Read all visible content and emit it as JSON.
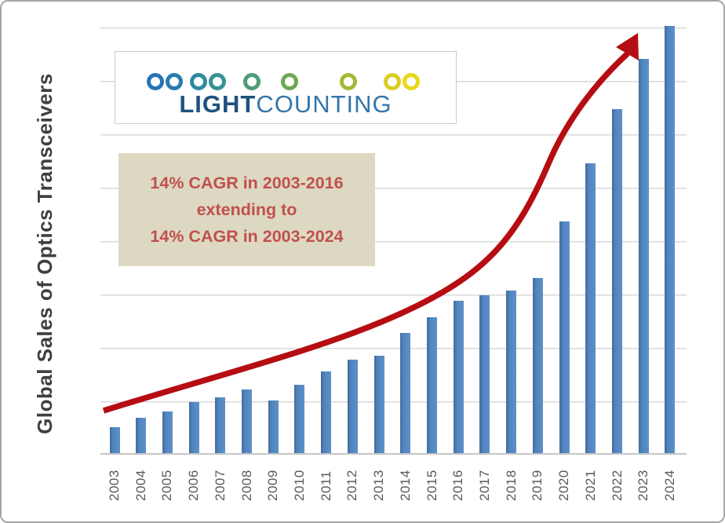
{
  "chart_data": {
    "type": "bar",
    "title": "",
    "ylabel": "Global Sales of Optics Transceivers",
    "xlabel": "",
    "categories": [
      "2003",
      "2004",
      "2005",
      "2006",
      "2007",
      "2008",
      "2009",
      "2010",
      "2011",
      "2012",
      "2013",
      "2014",
      "2015",
      "2016",
      "2017",
      "2018",
      "2019",
      "2020",
      "2021",
      "2022",
      "2023",
      "2024"
    ],
    "values": [
      0.49,
      0.66,
      0.78,
      0.95,
      1.04,
      1.19,
      0.98,
      1.28,
      1.53,
      1.75,
      1.82,
      2.25,
      2.54,
      2.85,
      2.95,
      3.05,
      3.28,
      4.34,
      5.43,
      6.44,
      7.38,
      8.0
    ],
    "value_units": "relative units (no numeric y-axis labels shown; 1 unit = one gridline interval)",
    "ylim": [
      0,
      8
    ],
    "gridlines": true,
    "legend": "none",
    "bar_color": "#4f84bf",
    "trend_arrow": {
      "description": "exponential growth arrow from 2003 baseline to above 2023 bar",
      "color": "#b50d12"
    }
  },
  "annotation": {
    "lines": [
      "14% CAGR in 2003-2016",
      "extending to",
      "14% CAGR in 2003-2024"
    ],
    "bg_color": "#ddd8c2",
    "text_color": "#c0504d"
  },
  "logo": {
    "brand_part1": "LIGHT",
    "brand_part2": "COUNTING",
    "part1_color": "#1f5182",
    "part2_color": "#3476ac",
    "chain_colors": [
      "#2874b3",
      "#2a7bae",
      "#2f8a9e",
      "#379292",
      "#4d9d74",
      "#6ca854",
      "#a2ba37",
      "#d9ce1f",
      "#e8d816"
    ]
  },
  "style_colors": {
    "axis_text": "#595959",
    "y_title_text": "#3f3f3f",
    "gridline": "#d9d9d9",
    "frame_border": "#a6a6a6"
  }
}
